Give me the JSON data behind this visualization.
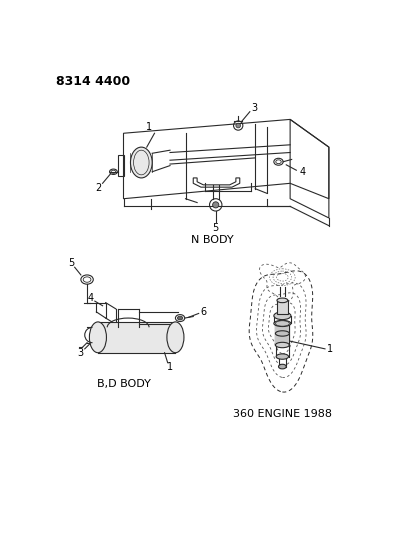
{
  "title": "8314 4400",
  "background_color": "#ffffff",
  "line_color": "#2a2a2a",
  "text_color": "#000000",
  "fig_width": 3.99,
  "fig_height": 5.33,
  "dpi": 100,
  "labels": {
    "top_diagram": "N BODY",
    "bottom_left_diagram": "B,D BODY",
    "bottom_right_diagram": "360 ENGINE 1988"
  }
}
